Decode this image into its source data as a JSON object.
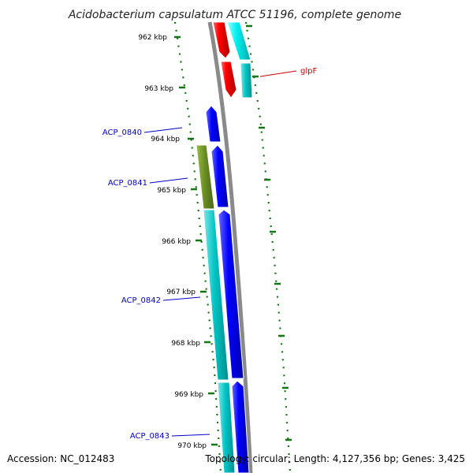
{
  "title": "Acidobacterium capsulatum ATCC 51196, complete genome",
  "footer": {
    "accession": "Accession: NC_012483",
    "summary": "Topology: circular; Length: 4,127,356 bp; Genes: 3,425"
  },
  "kbp_labels": [
    "962 kbp",
    "963 kbp",
    "964 kbp",
    "965 kbp",
    "966 kbp",
    "967 kbp",
    "968 kbp",
    "969 kbp",
    "970 kbp"
  ],
  "gene_labels": [
    {
      "text": "glpF",
      "color": "#cc0000"
    },
    {
      "text": "ACP_0840",
      "color": "#0000cc"
    },
    {
      "text": "ACP_0841",
      "color": "#0000cc"
    },
    {
      "text": "ACP_0842",
      "color": "#0000cc"
    },
    {
      "text": "ACP_0843",
      "color": "#0000cc"
    }
  ],
  "colors": {
    "backbone": "#8a8a8a",
    "gc_dots": "#117711",
    "red_gene": "#ee0000",
    "cyan_gene": "#00e0e0",
    "teal_gene": "#00b3b3",
    "blue_gene": "#0000ee",
    "olive_gene": "#6b8e23"
  }
}
